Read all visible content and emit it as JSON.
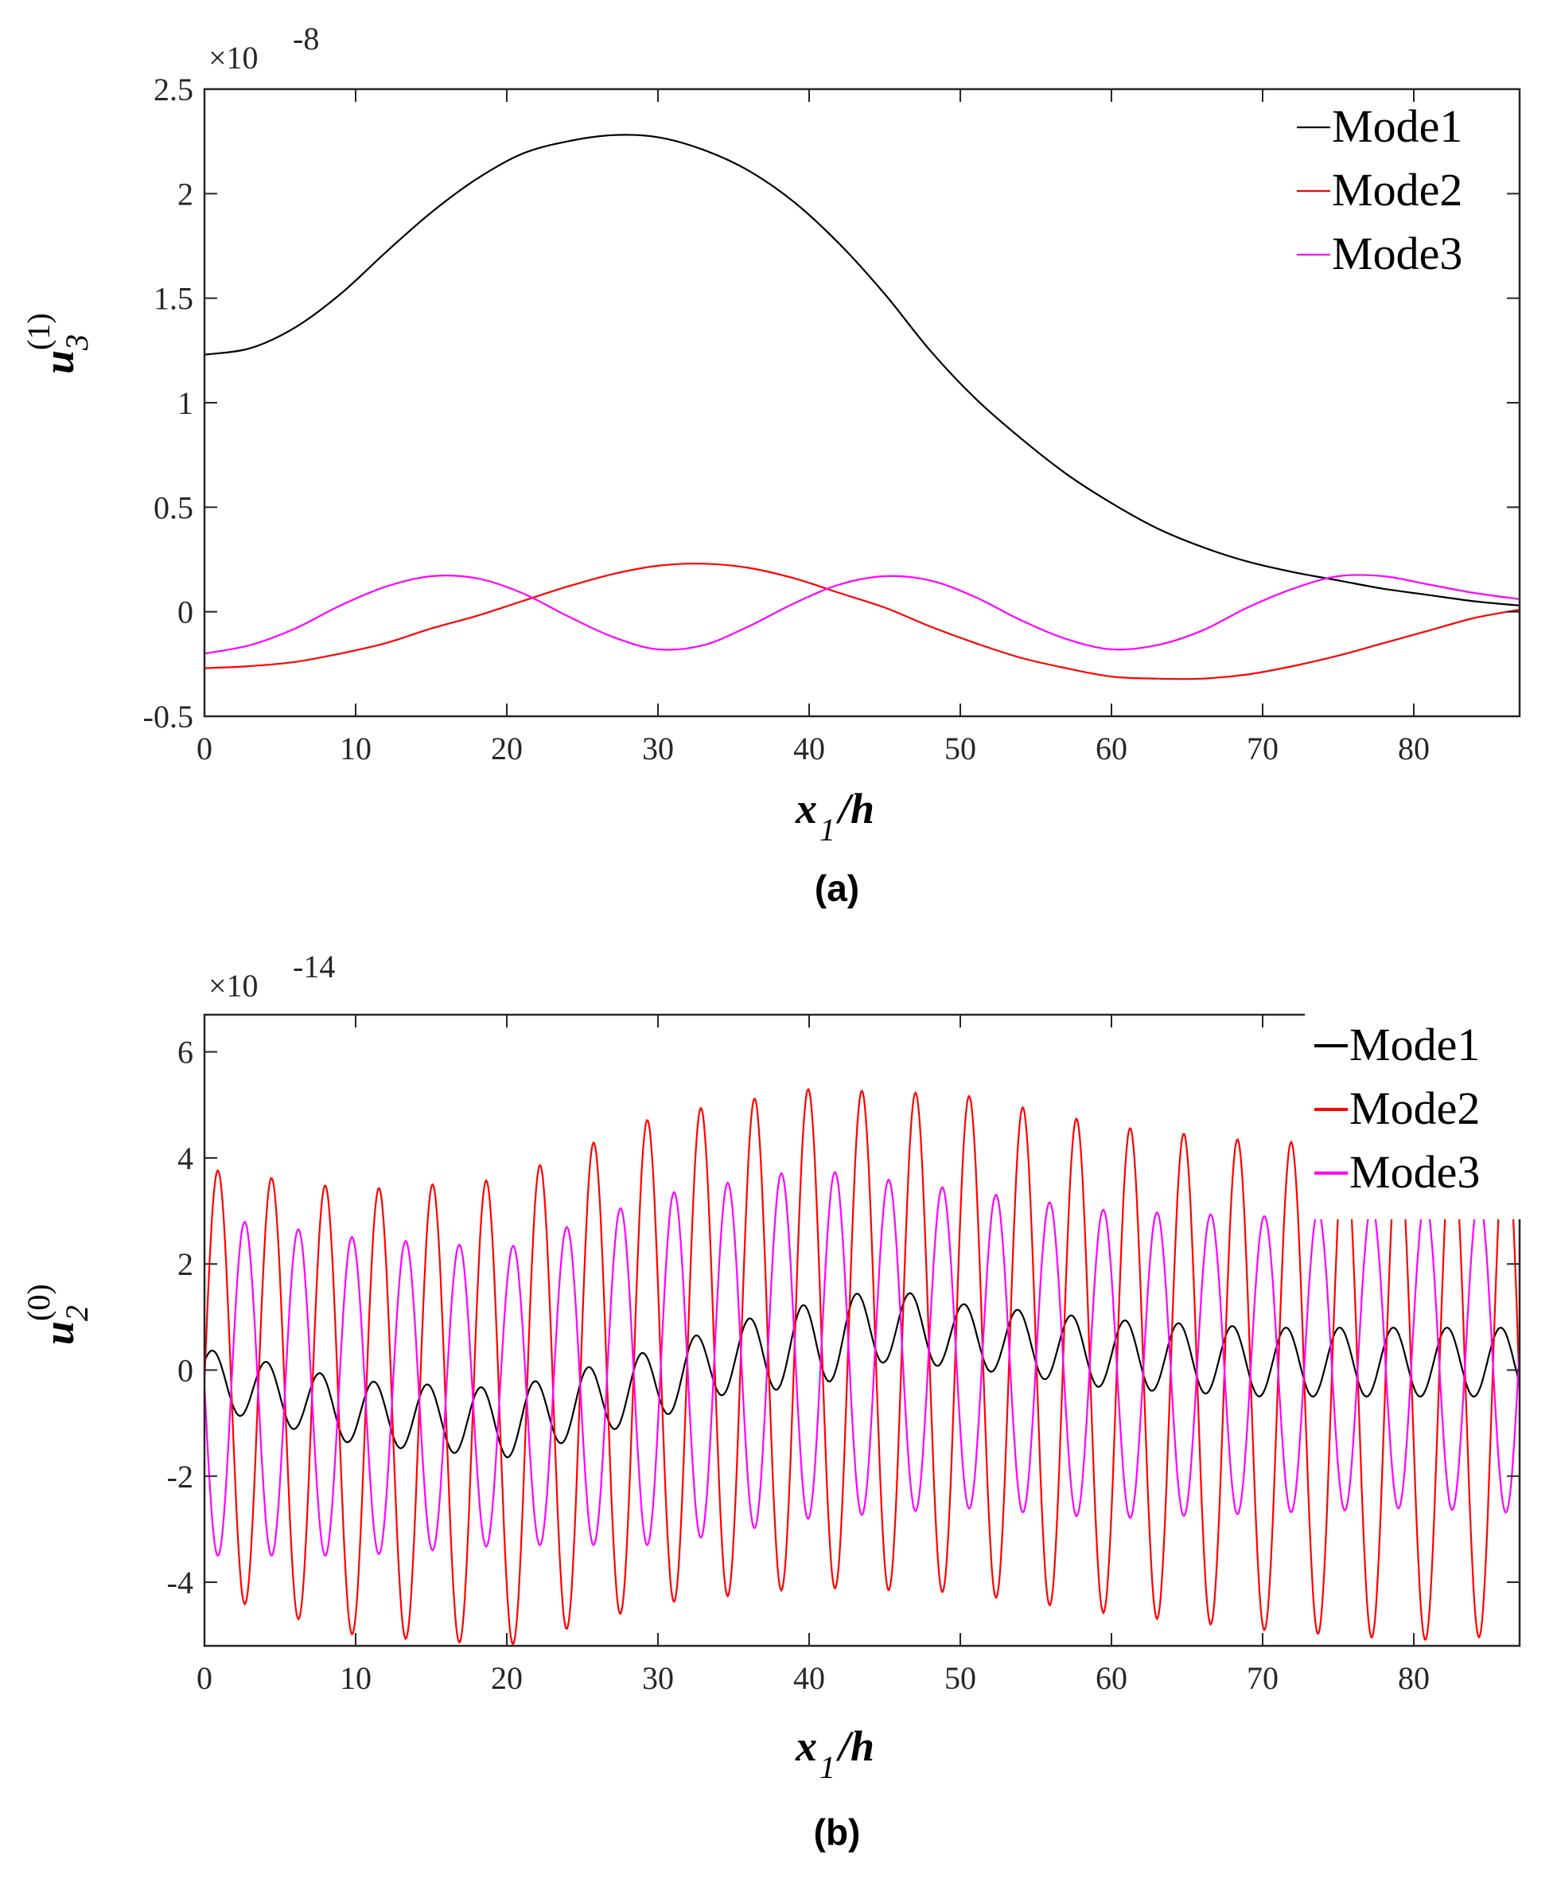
{
  "chart_data": [
    {
      "type": "line",
      "panel_label": "(a)",
      "xlabel": {
        "base": "x",
        "sub": "1",
        "rest": "/h"
      },
      "ylabel": {
        "base": "u",
        "sub": "3",
        "sup": "(1)"
      },
      "multiplier": {
        "base": "×10",
        "exp": "-8"
      },
      "xlim": [
        0,
        87
      ],
      "ylim": [
        -0.5,
        2.5
      ],
      "xticks": [
        0,
        10,
        20,
        30,
        40,
        50,
        60,
        70,
        80
      ],
      "yticks": [
        -0.5,
        0,
        0.5,
        1,
        1.5,
        2,
        2.5
      ],
      "ytick_labels": [
        "-0.5",
        "0",
        "0.5",
        "1",
        "1.5",
        "2",
        "2.5"
      ],
      "legend_position": "top-right",
      "series": [
        {
          "name": "Mode1",
          "color": "#000000",
          "x": [
            0,
            3,
            6,
            9,
            12,
            15,
            18,
            21,
            24,
            27,
            30,
            33,
            36,
            39,
            42,
            45,
            48,
            51,
            54,
            57,
            60,
            63,
            66,
            69,
            72,
            75,
            78,
            81,
            84,
            87
          ],
          "y": [
            1.23,
            1.26,
            1.36,
            1.52,
            1.72,
            1.91,
            2.07,
            2.19,
            2.25,
            2.28,
            2.27,
            2.21,
            2.11,
            1.96,
            1.76,
            1.52,
            1.25,
            1.02,
            0.83,
            0.66,
            0.52,
            0.4,
            0.31,
            0.24,
            0.19,
            0.15,
            0.11,
            0.08,
            0.05,
            0.03
          ]
        },
        {
          "name": "Mode2",
          "color": "#ff0000",
          "x": [
            0,
            3,
            6,
            9,
            12,
            15,
            18,
            21,
            24,
            27,
            30,
            33,
            36,
            39,
            42,
            45,
            48,
            51,
            54,
            57,
            60,
            63,
            66,
            69,
            72,
            75,
            78,
            81,
            84,
            87
          ],
          "y": [
            -0.27,
            -0.26,
            -0.24,
            -0.2,
            -0.15,
            -0.08,
            -0.02,
            0.05,
            0.12,
            0.18,
            0.22,
            0.23,
            0.21,
            0.16,
            0.09,
            0.02,
            -0.07,
            -0.15,
            -0.22,
            -0.27,
            -0.31,
            -0.32,
            -0.32,
            -0.3,
            -0.26,
            -0.21,
            -0.15,
            -0.09,
            -0.03,
            0.01
          ]
        },
        {
          "name": "Mode3",
          "color": "#ff00ff",
          "x": [
            0,
            3,
            6,
            9,
            12,
            15,
            18,
            21,
            24,
            27,
            30,
            33,
            36,
            39,
            42,
            45,
            48,
            51,
            54,
            57,
            60,
            63,
            66,
            69,
            72,
            75,
            78,
            81,
            84,
            87
          ],
          "y": [
            -0.2,
            -0.16,
            -0.08,
            0.03,
            0.12,
            0.17,
            0.16,
            0.09,
            -0.02,
            -0.12,
            -0.18,
            -0.16,
            -0.07,
            0.04,
            0.13,
            0.17,
            0.15,
            0.07,
            -0.04,
            -0.13,
            -0.18,
            -0.16,
            -0.09,
            0.02,
            0.11,
            0.17,
            0.17,
            0.13,
            0.09,
            0.06
          ]
        }
      ]
    },
    {
      "type": "line",
      "panel_label": "(b)",
      "xlabel": {
        "base": "x",
        "sub": "1",
        "rest": "/h"
      },
      "ylabel": {
        "base": "u",
        "sub": "2",
        "sup": "(0)"
      },
      "multiplier": {
        "base": "×10",
        "exp": "-14"
      },
      "xlim": [
        0,
        87
      ],
      "ylim": [
        -5.2,
        6.7
      ],
      "xticks": [
        0,
        10,
        20,
        30,
        40,
        50,
        60,
        70,
        80
      ],
      "yticks": [
        -4,
        -2,
        0,
        2,
        4,
        6
      ],
      "ytick_labels": [
        "-4",
        "-2",
        "0",
        "2",
        "4",
        "6"
      ],
      "legend_position": "top-right",
      "series": [
        {
          "name": "Mode1",
          "color": "#000000",
          "oscillation_period_x": 3.55,
          "phase": 0.6,
          "envelope_x": [
            0,
            10,
            20,
            30,
            35,
            40,
            45,
            50,
            60,
            70,
            80,
            87
          ],
          "center": [
            -0.15,
            -0.8,
            -1.0,
            -0.25,
            0.25,
            0.45,
            0.85,
            0.65,
            0.3,
            0.15,
            0.15,
            0.15
          ],
          "amplitude": [
            0.55,
            0.6,
            0.65,
            0.65,
            0.65,
            0.8,
            0.7,
            0.6,
            0.65,
            0.65,
            0.65,
            0.65
          ]
        },
        {
          "name": "Mode2",
          "color": "#ff0000",
          "oscillation_period_x": 3.55,
          "phase": 0.0,
          "envelope_x": [
            0,
            10,
            20,
            30,
            40,
            50,
            60,
            70,
            80,
            87
          ],
          "center": [
            -0.2,
            -0.8,
            -0.8,
            0.2,
            0.6,
            0.5,
            0.0,
            -0.3,
            -0.4,
            -0.2
          ],
          "amplitude": [
            4.0,
            4.2,
            4.4,
            4.6,
            4.7,
            4.7,
            4.6,
            4.6,
            4.7,
            4.8
          ]
        },
        {
          "name": "Mode3",
          "color": "#ff00ff",
          "oscillation_period_x": 3.55,
          "phase": 3.14,
          "envelope_x": [
            0,
            10,
            20,
            30,
            40,
            50,
            60,
            70,
            80,
            87
          ],
          "center": [
            -0.3,
            -0.5,
            -0.5,
            0.0,
            0.5,
            0.4,
            0.1,
            0.1,
            0.3,
            0.3
          ],
          "amplitude": [
            3.2,
            3.0,
            2.8,
            3.3,
            3.3,
            3.0,
            2.9,
            2.8,
            2.9,
            3.0
          ]
        }
      ]
    }
  ]
}
